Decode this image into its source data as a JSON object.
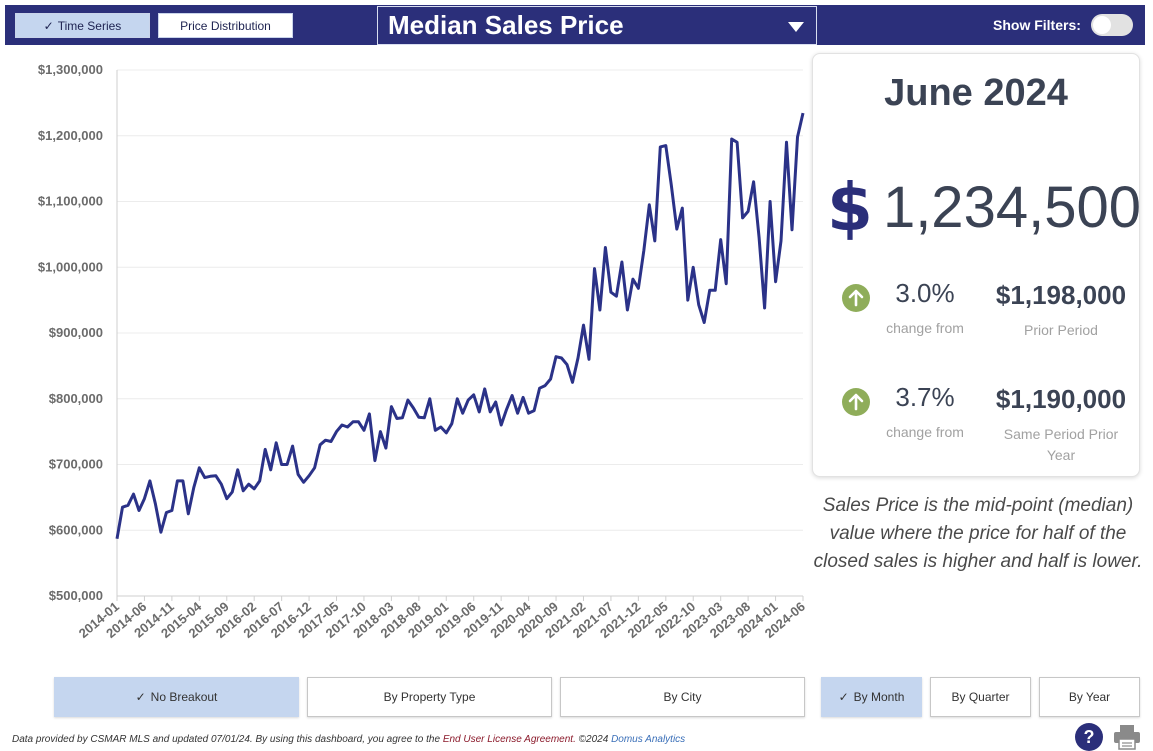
{
  "header": {
    "view_buttons": [
      {
        "label": "Time Series",
        "active": true
      },
      {
        "label": "Price Distribution",
        "active": false
      }
    ],
    "metric": "Median Sales Price",
    "filters_label": "Show Filters:",
    "filters_on": false
  },
  "colors": {
    "navy": "#2b2f7a",
    "line": "#2b3288",
    "active_button": "#c5d6ef",
    "up_arrow": "#8fad5a"
  },
  "chart_data": {
    "type": "line",
    "title": "",
    "xlabel": "",
    "ylabel": "",
    "ylim": [
      500000,
      1300000
    ],
    "y_ticks": [
      "$500,000",
      "$600,000",
      "$700,000",
      "$800,000",
      "$900,000",
      "$1,000,000",
      "$1,100,000",
      "$1,200,000",
      "$1,300,000"
    ],
    "x_ticks": [
      "2014-01",
      "2014-06",
      "2014-11",
      "2015-04",
      "2015-09",
      "2016-02",
      "2016-07",
      "2016-12",
      "2017-05",
      "2017-10",
      "2018-03",
      "2018-08",
      "2019-01",
      "2019-06",
      "2019-11",
      "2020-04",
      "2020-09",
      "2021-02",
      "2021-07",
      "2021-12",
      "2022-05",
      "2022-10",
      "2023-03",
      "2023-08",
      "2024-01",
      "2024-06"
    ],
    "start_month": "2014-01",
    "series": [
      {
        "values": [
          587000,
          635000,
          638000,
          655000,
          630000,
          648000,
          675000,
          640000,
          597000,
          627000,
          630000,
          675000,
          675000,
          625000,
          665000,
          695000,
          680000,
          682000,
          683000,
          670000,
          648000,
          658000,
          692000,
          660000,
          670000,
          663000,
          675000,
          723000,
          692000,
          733000,
          700000,
          700000,
          728000,
          685000,
          673000,
          683000,
          695000,
          730000,
          737000,
          735000,
          750000,
          760000,
          757000,
          765000,
          765000,
          752000,
          777000,
          706000,
          750000,
          725000,
          788000,
          770000,
          771000,
          798000,
          786000,
          772000,
          771000,
          800000,
          752000,
          757000,
          748000,
          762000,
          800000,
          778000,
          798000,
          806000,
          780000,
          815000,
          780000,
          795000,
          760000,
          784000,
          805000,
          778000,
          802000,
          778000,
          782000,
          816000,
          820000,
          830000,
          864000,
          862000,
          852000,
          825000,
          862000,
          912000,
          860000,
          998000,
          935000,
          1030000,
          962000,
          956000,
          1008000,
          935000,
          982000,
          968000,
          1025000,
          1095000,
          1040000,
          1183000,
          1185000,
          1125000,
          1058000,
          1090000,
          950000,
          1000000,
          943000,
          916000,
          965000,
          965000,
          1042000,
          975000,
          1195000,
          1190000,
          1075000,
          1085000,
          1130000,
          1045000,
          938000,
          1100000,
          978000,
          1040000,
          1190000,
          1057000,
          1198000,
          1234500
        ]
      }
    ],
    "grid": true
  },
  "summary": {
    "period": "June 2024",
    "currency_symbol": "$",
    "value": "1,234,500",
    "comparisons": [
      {
        "pct": "3.0%",
        "change_label": "change from",
        "value": "$1,198,000",
        "label": "Prior Period"
      },
      {
        "pct": "3.7%",
        "change_label": "change from",
        "value": "$1,190,000",
        "label": "Same Period Prior Year"
      }
    ]
  },
  "description": "Sales Price is the mid-point (median) value where the price for half of the closed sales is higher and half is lower.",
  "breakout_buttons": [
    {
      "label": "No Breakout",
      "active": true
    },
    {
      "label": "By Property Type",
      "active": false
    },
    {
      "label": "By City",
      "active": false
    }
  ],
  "period_buttons": [
    {
      "label": "By Month",
      "active": true
    },
    {
      "label": "By Quarter",
      "active": false
    },
    {
      "label": "By Year",
      "active": false
    }
  ],
  "footer": {
    "text": "Data provided by CSMAR MLS and updated 07/01/24.  By using this dashboard, you agree to the",
    "eula": "End User License Agreement.",
    "copyright": "©2024",
    "brand": "Domus Analytics"
  },
  "icons": {
    "help": "?",
    "help_name": "help-icon",
    "print_name": "printer-icon"
  }
}
